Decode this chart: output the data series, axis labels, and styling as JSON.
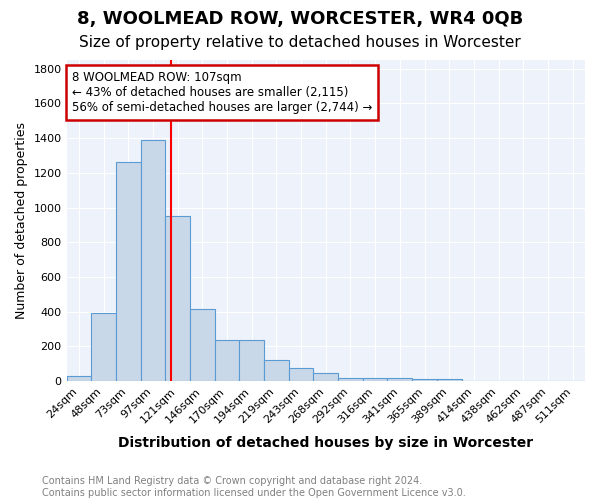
{
  "title": "8, WOOLMEAD ROW, WORCESTER, WR4 0QB",
  "subtitle": "Size of property relative to detached houses in Worcester",
  "xlabel": "Distribution of detached houses by size in Worcester",
  "ylabel": "Number of detached properties",
  "bar_values": [
    30,
    395,
    1260,
    1390,
    950,
    415,
    235,
    235,
    120,
    75,
    45,
    18,
    15,
    15,
    14,
    13,
    0,
    0,
    0,
    0,
    0
  ],
  "bin_labels": [
    "24sqm",
    "48sqm",
    "73sqm",
    "97sqm",
    "121sqm",
    "146sqm",
    "170sqm",
    "194sqm",
    "219sqm",
    "243sqm",
    "268sqm",
    "292sqm",
    "316sqm",
    "341sqm",
    "365sqm",
    "389sqm",
    "414sqm",
    "438sqm",
    "462sqm",
    "487sqm",
    "511sqm"
  ],
  "bar_color": "#c8d8e8",
  "bar_edge_color": "#5b9bd5",
  "bg_color": "#eef2fa",
  "grid_color": "#ffffff",
  "red_line_x": 3.72,
  "annotation_text": "8 WOOLMEAD ROW: 107sqm\n← 43% of detached houses are smaller (2,115)\n56% of semi-detached houses are larger (2,744) →",
  "annotation_box_color": "#ffffff",
  "annotation_box_edge": "#cc0000",
  "ylim": [
    0,
    1850
  ],
  "yticks": [
    0,
    200,
    400,
    600,
    800,
    1000,
    1200,
    1400,
    1600,
    1800
  ],
  "footer_text": "Contains HM Land Registry data © Crown copyright and database right 2024.\nContains public sector information licensed under the Open Government Licence v3.0.",
  "title_fontsize": 13,
  "subtitle_fontsize": 11,
  "xlabel_fontsize": 10,
  "ylabel_fontsize": 9,
  "tick_fontsize": 8,
  "annot_fontsize": 8.5,
  "footer_fontsize": 7
}
